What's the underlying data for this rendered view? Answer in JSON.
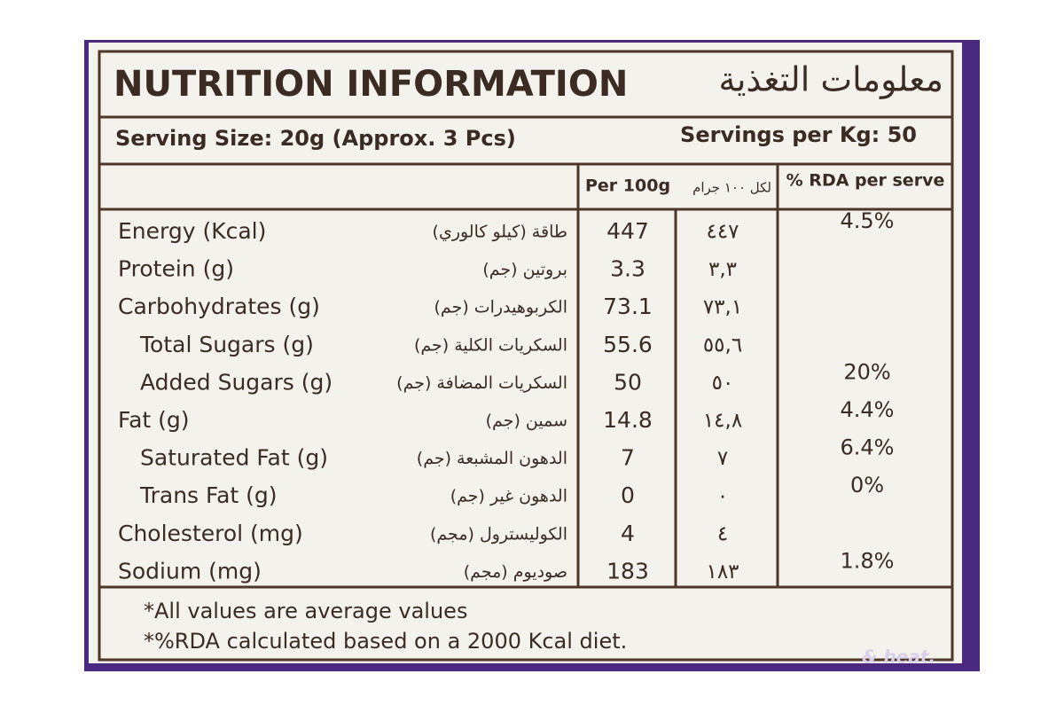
{
  "header": {
    "title": "NUTRITION INFORMATION",
    "arabic_title": "معلومات التغذية"
  },
  "serving": {
    "size": "Serving Size: 20g (Approx. 3 Pcs)",
    "per_kg": "Servings per Kg: 50"
  },
  "table": {
    "columns": {
      "per_100g": "Per 100g",
      "per_100g_arabic": "لكل ١٠٠ جرام",
      "rda": "% RDA per serve"
    },
    "rows": [
      {
        "name": "Energy (Kcal)",
        "arabic": "طاقة (كيلو كالوري)",
        "value": "447",
        "arabic_value": "٤٤٧",
        "rda": "4.5%"
      },
      {
        "name": "Protein (g)",
        "arabic": "بروتين (جم)",
        "value": "3.3",
        "arabic_value": "٣,٣"
      },
      {
        "name": "Carbohydrates (g)",
        "arabic": "الكربوهيدرات (جم)",
        "value": "73.1",
        "arabic_value": "٧٣,١"
      },
      {
        "name": "Total Sugars (g)",
        "arabic": "السكريات الكلية (جم)",
        "value": "55.6",
        "arabic_value": "٥٥,٦"
      },
      {
        "name": "Added Sugars (g)",
        "arabic": "السكريات المضافة (جم)",
        "value": "50",
        "arabic_value": "٥٠",
        "rda": "20%"
      },
      {
        "name": "Fat (g)",
        "arabic": "سمين (جم)",
        "value": "14.8",
        "arabic_value": "١٤,٨",
        "rda": "4.4%"
      },
      {
        "name": "Saturated Fat (g)",
        "arabic": "الدهون المشبعة (جم)",
        "value": "7",
        "arabic_value": "٧",
        "rda": "6.4%"
      },
      {
        "name": "Trans Fat (g)",
        "arabic": "الدهون غير (جم)",
        "value": "0",
        "arabic_value": "٠",
        "rda": "0%"
      },
      {
        "name": "Cholesterol (mg)",
        "arabic": "الكوليسترول (مجم)",
        "value": "4",
        "arabic_value": "٤"
      },
      {
        "name": "Sodium (mg)",
        "arabic": "صوديوم (مجم)",
        "value": "183",
        "arabic_value": "١٨٣",
        "rda": "1.8%"
      }
    ]
  },
  "footnotes": [
    "*All values are average values",
    "*%RDA calculated based on a 2000 Kcal diet."
  ],
  "packaging_text": "& heat."
}
